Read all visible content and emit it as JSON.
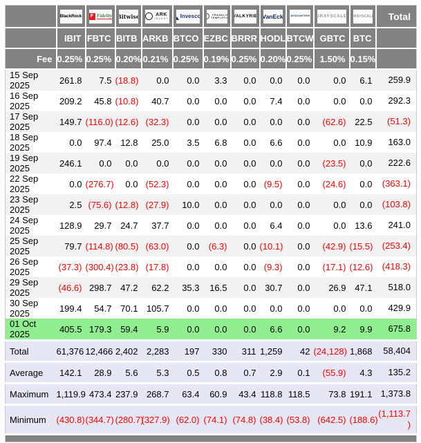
{
  "table": {
    "fee_label": "Fee",
    "total_label": "Total",
    "columns": [
      {
        "provider": "BlackRock",
        "ticker": "IBIT",
        "fee": "0.25%",
        "logo": {
          "style": "blackrock",
          "text": "BlackRock"
        }
      },
      {
        "provider": "Fidelity",
        "ticker": "FBTC",
        "fee": "0.25%",
        "logo": {
          "style": "fidelity",
          "icon": "F",
          "text": "Fidelity"
        }
      },
      {
        "provider": "Bitwise",
        "ticker": "BITB",
        "fee": "0.20%",
        "logo": {
          "style": "bitwise",
          "text": "Bitwise"
        }
      },
      {
        "provider": "ARK Invest",
        "ticker": "ARKB",
        "fee": "0.21%",
        "logo": {
          "style": "ark",
          "icon": "",
          "text": "ARK",
          "subtext": "INVEST"
        }
      },
      {
        "provider": "Invesco",
        "ticker": "BTCO",
        "fee": "0.25%",
        "logo": {
          "style": "invesco",
          "icon": "",
          "text": "Invesco"
        }
      },
      {
        "provider": "Franklin Templeton",
        "ticker": "EZBC",
        "fee": "0.19%",
        "logo": {
          "style": "franklin",
          "icon": "",
          "text": "FRANKLIN",
          "subtext": "TEMPLETON"
        }
      },
      {
        "provider": "Valkyrie",
        "ticker": "BRRR",
        "fee": "0.25%",
        "logo": {
          "style": "valkyrie",
          "text": "VALKYRIE"
        }
      },
      {
        "provider": "VanEck",
        "ticker": "HODL",
        "fee": "0.20%",
        "logo": {
          "style": "vaneck",
          "text": "VanEck"
        }
      },
      {
        "provider": "WisdomTree",
        "ticker": "BTCW",
        "fee": "0.25%",
        "logo": {
          "style": "wisdomtree",
          "icon": "",
          "subtext": "WISDOMTREE"
        }
      },
      {
        "provider": "Grayscale",
        "ticker": "GBTC",
        "fee": "1.50%",
        "logo": {
          "style": "grayscale",
          "text": "GRAYSCALE"
        }
      },
      {
        "provider": "Grayscale",
        "ticker": "BTC",
        "fee": "0.15%",
        "logo": {
          "style": "grayscale",
          "text": "GRAYSCALE"
        }
      }
    ],
    "rows": [
      {
        "kind": "data",
        "label": "15 Sep 2025",
        "values": [
          "261.8",
          "7.5",
          "(18.8)",
          "0.0",
          "0.0",
          "3.3",
          "0.0",
          "0.0",
          "0.0",
          "0.0",
          "6.1",
          "259.9"
        ]
      },
      {
        "kind": "data",
        "label": "16 Sep 2025",
        "values": [
          "209.2",
          "45.8",
          "(10.8)",
          "40.7",
          "0.0",
          "0.0",
          "0.0",
          "7.4",
          "0.0",
          "0.0",
          "0.0",
          "292.3"
        ]
      },
      {
        "kind": "data",
        "label": "17 Sep 2025",
        "values": [
          "149.7",
          "(116.0)",
          "(12.6)",
          "(32.3)",
          "0.0",
          "0.0",
          "0.0",
          "0.0",
          "0.0",
          "(62.6)",
          "22.5",
          "(51.3)"
        ]
      },
      {
        "kind": "data",
        "label": "18 Sep 2025",
        "values": [
          "0.0",
          "97.4",
          "12.8",
          "25.0",
          "3.5",
          "6.8",
          "0.0",
          "6.6",
          "0.0",
          "0.0",
          "10.9",
          "163.0"
        ]
      },
      {
        "kind": "data",
        "label": "19 Sep 2025",
        "values": [
          "246.1",
          "0.0",
          "0.0",
          "0.0",
          "0.0",
          "0.0",
          "0.0",
          "0.0",
          "0.0",
          "(23.5)",
          "0.0",
          "222.6"
        ]
      },
      {
        "kind": "data",
        "label": "22 Sep 2025",
        "values": [
          "0.0",
          "(276.7)",
          "0.0",
          "(52.3)",
          "0.0",
          "0.0",
          "0.0",
          "(9.5)",
          "0.0",
          "(24.6)",
          "0.0",
          "(363.1)"
        ]
      },
      {
        "kind": "data",
        "label": "23 Sep 2025",
        "values": [
          "2.5",
          "(75.6)",
          "(12.8)",
          "(27.9)",
          "10.0",
          "0.0",
          "0.0",
          "0.0",
          "0.0",
          "0.0",
          "0.0",
          "(103.8)"
        ]
      },
      {
        "kind": "data",
        "label": "24 Sep 2025",
        "values": [
          "128.9",
          "29.7",
          "24.7",
          "37.7",
          "0.0",
          "0.0",
          "0.0",
          "6.4",
          "0.0",
          "0.0",
          "13.6",
          "241.0"
        ]
      },
      {
        "kind": "data",
        "label": "25 Sep 2025",
        "values": [
          "79.7",
          "(114.8)",
          "(80.5)",
          "(63.0)",
          "0.0",
          "(6.3)",
          "0.0",
          "(10.1)",
          "0.0",
          "(42.9)",
          "(15.5)",
          "(253.4)"
        ]
      },
      {
        "kind": "data",
        "label": "26 Sep 2025",
        "values": [
          "(37.3)",
          "(300.4)",
          "(23.8)",
          "(17.8)",
          "0.0",
          "0.0",
          "0.0",
          "(9.3)",
          "0.0",
          "(17.1)",
          "(12.6)",
          "(418.3)"
        ]
      },
      {
        "kind": "data",
        "label": "29 Sep 2025",
        "values": [
          "(46.6)",
          "298.7",
          "47.2",
          "62.2",
          "35.3",
          "16.5",
          "0.0",
          "30.7",
          "0.0",
          "26.9",
          "47.1",
          "518.0"
        ]
      },
      {
        "kind": "data",
        "label": "30 Sep 2025",
        "values": [
          "199.4",
          "54.7",
          "70.1",
          "105.7",
          "0.0",
          "0.0",
          "0.0",
          "0.0",
          "0.0",
          "0.0",
          "0.0",
          "429.9"
        ]
      },
      {
        "kind": "highlight",
        "label": "01 Oct 2025",
        "values": [
          "405.5",
          "179.3",
          "59.4",
          "5.9",
          "0.0",
          "0.0",
          "0.0",
          "6.6",
          "0.0",
          "9.2",
          "9.9",
          "675.8"
        ]
      },
      {
        "kind": "summary",
        "label": "Total",
        "values": [
          "61,376",
          "12,466",
          "2,402",
          "2,283",
          "197",
          "330",
          "311",
          "1,259",
          "42",
          "(24,128)",
          "1,868",
          "58,404"
        ]
      },
      {
        "kind": "summary",
        "label": "Average",
        "values": [
          "142.1",
          "28.9",
          "5.6",
          "5.3",
          "0.5",
          "0.8",
          "0.7",
          "2.9",
          "0.1",
          "(55.9)",
          "4.3",
          "135.2"
        ]
      },
      {
        "kind": "summary",
        "label": "Maximum",
        "values": [
          "1,119.9",
          "473.4",
          "237.9",
          "268.7",
          "63.4",
          "60.9",
          "43.4",
          "118.8",
          "118.5",
          "73.8",
          "191.1",
          "1,373.8"
        ]
      },
      {
        "kind": "summary",
        "label": "Minimum",
        "values": [
          "(430.8)",
          "(344.7)",
          "(280.7)",
          "(327.9)",
          "(62.0)",
          "(74.1)",
          "(74.8)",
          "(38.4)",
          "(53.8)",
          "(642.5)",
          "(188.6)",
          "(1,113.7)"
        ]
      }
    ]
  },
  "colors": {
    "header_bg": "#828282",
    "header_text": "#ffffff",
    "stripe_bg": "#f2f2f2",
    "highlight_row_bg": "#90ee90",
    "summary_row_bg": "#e6e6f5",
    "negative_text": "#ff0000",
    "positive_text": "#000000"
  },
  "chart_data": {
    "type": "table",
    "columns": [
      "IBIT",
      "FBTC",
      "BITB",
      "ARKB",
      "BTCO",
      "EZBC",
      "BRRR",
      "HODL",
      "BTCW",
      "GBTC",
      "BTC",
      "Total"
    ],
    "fees_percent": [
      0.25,
      0.25,
      0.2,
      0.21,
      0.25,
      0.19,
      0.25,
      0.2,
      0.25,
      1.5,
      0.15
    ],
    "rows": [
      {
        "label": "15 Sep 2025",
        "values": [
          261.8,
          7.5,
          -18.8,
          0.0,
          0.0,
          3.3,
          0.0,
          0.0,
          0.0,
          0.0,
          6.1,
          259.9
        ]
      },
      {
        "label": "16 Sep 2025",
        "values": [
          209.2,
          45.8,
          -10.8,
          40.7,
          0.0,
          0.0,
          0.0,
          7.4,
          0.0,
          0.0,
          0.0,
          292.3
        ]
      },
      {
        "label": "17 Sep 2025",
        "values": [
          149.7,
          -116.0,
          -12.6,
          -32.3,
          0.0,
          0.0,
          0.0,
          0.0,
          0.0,
          -62.6,
          22.5,
          -51.3
        ]
      },
      {
        "label": "18 Sep 2025",
        "values": [
          0.0,
          97.4,
          12.8,
          25.0,
          3.5,
          6.8,
          0.0,
          6.6,
          0.0,
          0.0,
          10.9,
          163.0
        ]
      },
      {
        "label": "19 Sep 2025",
        "values": [
          246.1,
          0.0,
          0.0,
          0.0,
          0.0,
          0.0,
          0.0,
          0.0,
          0.0,
          -23.5,
          0.0,
          222.6
        ]
      },
      {
        "label": "22 Sep 2025",
        "values": [
          0.0,
          -276.7,
          0.0,
          -52.3,
          0.0,
          0.0,
          0.0,
          -9.5,
          0.0,
          -24.6,
          0.0,
          -363.1
        ]
      },
      {
        "label": "23 Sep 2025",
        "values": [
          2.5,
          -75.6,
          -12.8,
          -27.9,
          10.0,
          0.0,
          0.0,
          0.0,
          0.0,
          0.0,
          0.0,
          -103.8
        ]
      },
      {
        "label": "24 Sep 2025",
        "values": [
          128.9,
          29.7,
          24.7,
          37.7,
          0.0,
          0.0,
          0.0,
          6.4,
          0.0,
          0.0,
          13.6,
          241.0
        ]
      },
      {
        "label": "25 Sep 2025",
        "values": [
          79.7,
          -114.8,
          -80.5,
          -63.0,
          0.0,
          -6.3,
          0.0,
          -10.1,
          0.0,
          -42.9,
          -15.5,
          -253.4
        ]
      },
      {
        "label": "26 Sep 2025",
        "values": [
          -37.3,
          -300.4,
          -23.8,
          -17.8,
          0.0,
          0.0,
          0.0,
          -9.3,
          0.0,
          -17.1,
          -12.6,
          -418.3
        ]
      },
      {
        "label": "29 Sep 2025",
        "values": [
          -46.6,
          298.7,
          47.2,
          62.2,
          35.3,
          16.5,
          0.0,
          30.7,
          0.0,
          26.9,
          47.1,
          518.0
        ]
      },
      {
        "label": "30 Sep 2025",
        "values": [
          199.4,
          54.7,
          70.1,
          105.7,
          0.0,
          0.0,
          0.0,
          0.0,
          0.0,
          0.0,
          0.0,
          429.9
        ]
      },
      {
        "label": "01 Oct 2025",
        "values": [
          405.5,
          179.3,
          59.4,
          5.9,
          0.0,
          0.0,
          0.0,
          6.6,
          0.0,
          9.2,
          9.9,
          675.8
        ]
      },
      {
        "label": "Total",
        "values": [
          61376,
          12466,
          2402,
          2283,
          197,
          330,
          311,
          1259,
          42,
          -24128,
          1868,
          58404
        ]
      },
      {
        "label": "Average",
        "values": [
          142.1,
          28.9,
          5.6,
          5.3,
          0.5,
          0.8,
          0.7,
          2.9,
          0.1,
          -55.9,
          4.3,
          135.2
        ]
      },
      {
        "label": "Maximum",
        "values": [
          1119.9,
          473.4,
          237.9,
          268.7,
          63.4,
          60.9,
          43.4,
          118.8,
          118.5,
          73.8,
          191.1,
          1373.8
        ]
      },
      {
        "label": "Minimum",
        "values": [
          -430.8,
          -344.7,
          -280.7,
          -327.9,
          -62.0,
          -74.1,
          -74.8,
          -38.4,
          -53.8,
          -642.5,
          -188.6,
          -1113.7
        ]
      }
    ]
  }
}
